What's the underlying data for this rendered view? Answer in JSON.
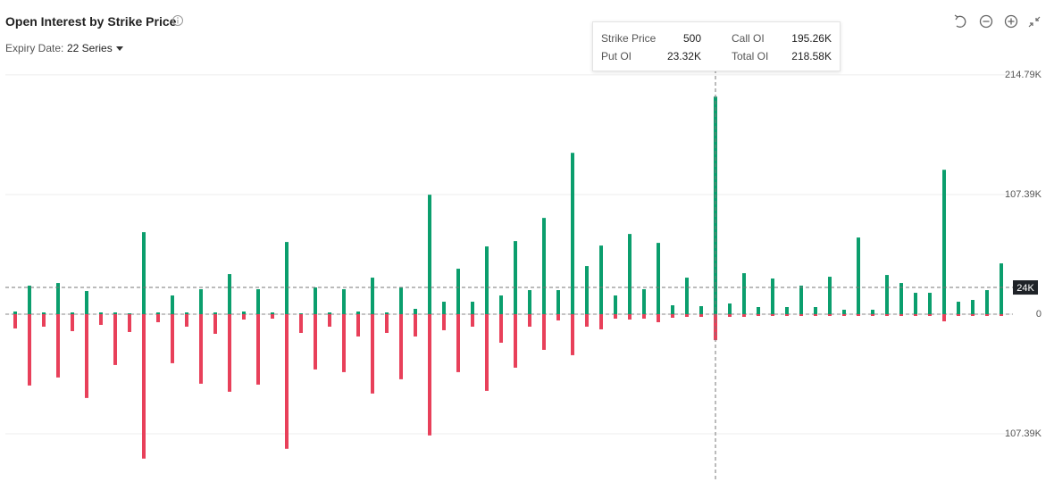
{
  "chart_data": {
    "type": "bar",
    "title": "Open Interest by Strike Price",
    "expiry_label": "Expiry Date:",
    "expiry_value": "22 Series",
    "categories": [
      null,
      null,
      null,
      null,
      null,
      null,
      null,
      null,
      null,
      null,
      null,
      null,
      null,
      null,
      null,
      null,
      null,
      null,
      null,
      null,
      null,
      null,
      null,
      null,
      null,
      null,
      null,
      null,
      null,
      null,
      null,
      null,
      null,
      null,
      null,
      null,
      null,
      null,
      null,
      null,
      null,
      null,
      null,
      null,
      null,
      null,
      null,
      null,
      null,
      500,
      null,
      null,
      null,
      null,
      null,
      null,
      null,
      null,
      null,
      null,
      null,
      null,
      null,
      null,
      null,
      null,
      null,
      null,
      null,
      null
    ],
    "series": [
      {
        "name": "Call OI",
        "color": "#0b9e6d",
        "values": [
          2400,
          25600,
          1600,
          28000,
          1600,
          20800,
          1600,
          1600,
          800,
          73600,
          1600,
          16800,
          1600,
          22400,
          1600,
          36000,
          2400,
          22400,
          1600,
          64800,
          800,
          24000,
          1600,
          22400,
          2400,
          32800,
          1600,
          24000,
          4800,
          107200,
          11200,
          40800,
          11200,
          60800,
          16800,
          65600,
          21600,
          86400,
          21600,
          144800,
          43200,
          61600,
          16800,
          72000,
          22400,
          64000,
          8000,
          32800,
          7200,
          195260,
          9600,
          36800,
          6400,
          32000,
          6400,
          25600,
          6400,
          33600,
          4000,
          68800,
          4000,
          35200,
          28000,
          19200,
          19200,
          129600,
          11200,
          12800,
          21600,
          45600
        ]
      },
      {
        "name": "Put OI",
        "color": "#e8405a",
        "values": [
          -12800,
          -64000,
          -11200,
          -56800,
          -15200,
          -75200,
          -9600,
          -45600,
          -16000,
          -129600,
          -7200,
          -44000,
          -11200,
          -62400,
          -17600,
          -69600,
          -4800,
          -63200,
          -4000,
          -120800,
          -16800,
          -49600,
          -11200,
          -52000,
          -20000,
          -71200,
          -16800,
          -58400,
          -20000,
          -108800,
          -14400,
          -52000,
          -11200,
          -68800,
          -25600,
          -48000,
          -11200,
          -32000,
          -5600,
          -36800,
          -11200,
          -13600,
          -4000,
          -4800,
          -4000,
          -7200,
          -3200,
          -2400,
          -2400,
          -23320,
          -2400,
          -2400,
          -1600,
          -1600,
          -1600,
          -1600,
          -1600,
          -1600,
          -1600,
          -1600,
          -1600,
          -1600,
          -1600,
          -1600,
          -1600,
          -6400,
          -1600,
          -1600,
          -1600,
          -1600
        ]
      }
    ],
    "ylim": [
      -146600,
      221900
    ],
    "yticks": [
      {
        "value": 214790,
        "label": "214.79K"
      },
      {
        "value": 107390,
        "label": "107.39K"
      },
      0,
      {
        "value": -107390,
        "label": "107.39K"
      }
    ],
    "grid": true,
    "crosshair": {
      "value": 24000,
      "label": "24K"
    },
    "tooltip": {
      "strike_name": "Strike Price",
      "call": "195.26K",
      "put": "23.32K",
      "total_name": "Total OI",
      "total": "218.58K"
    }
  }
}
